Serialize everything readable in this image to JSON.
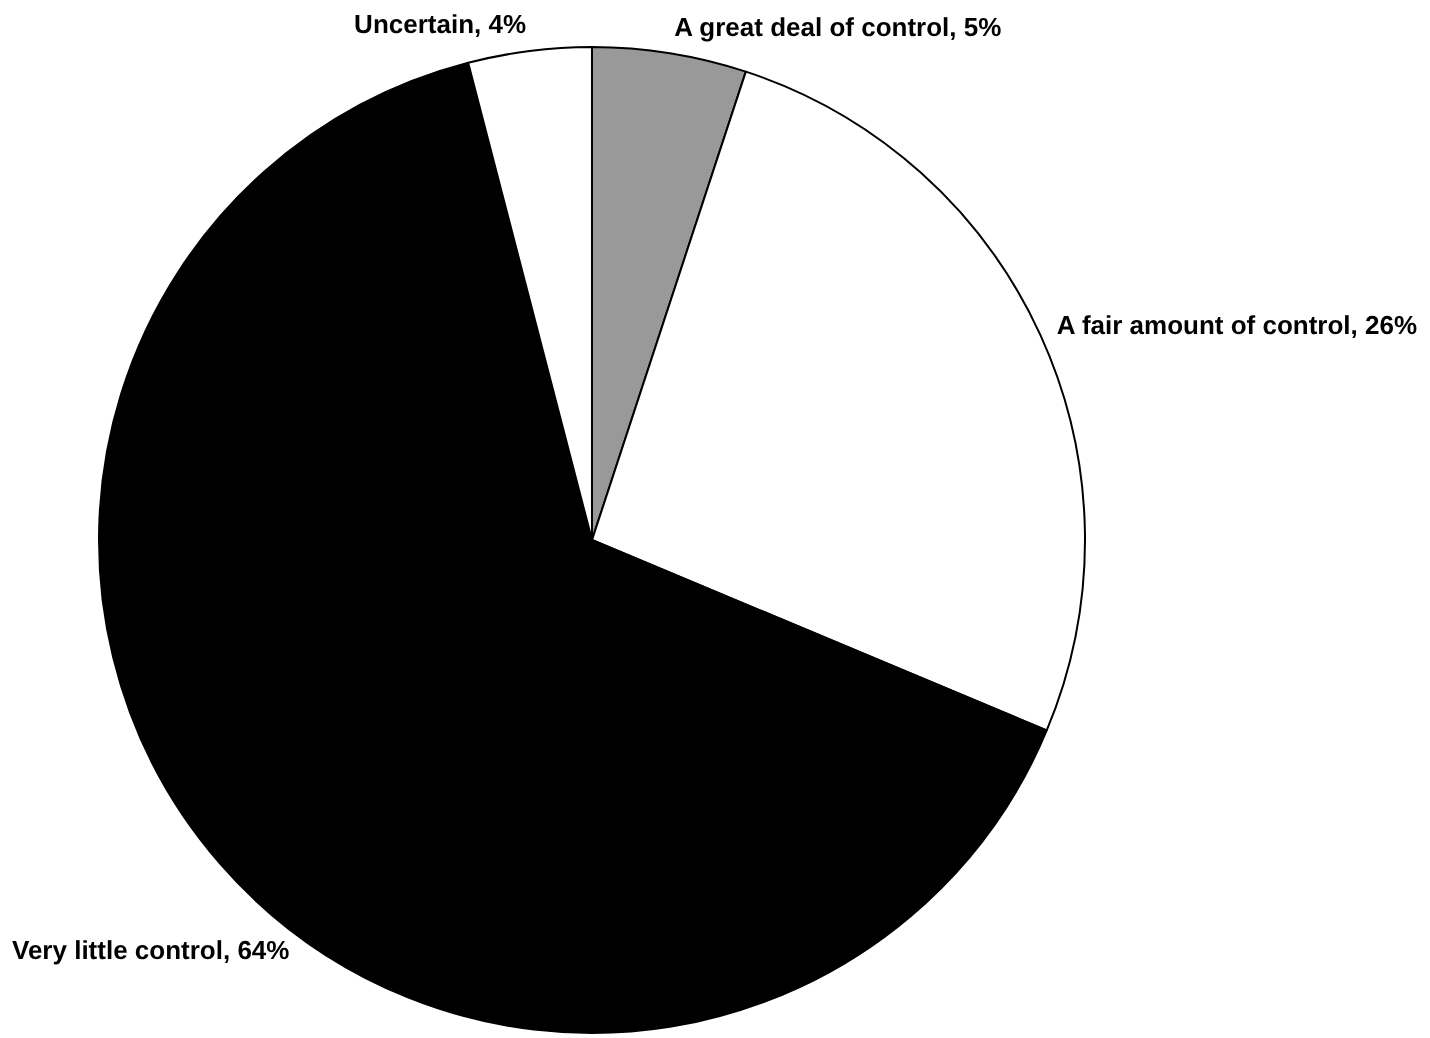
{
  "chart_data": {
    "type": "pie",
    "categories": [
      "A great deal of control",
      "A fair amount of control",
      "Very little control",
      "Uncertain"
    ],
    "values": [
      5,
      26,
      64,
      4
    ],
    "colors": [
      "#999999",
      "#ffffff",
      "#000000",
      "#ffffff"
    ],
    "value_labels": [
      "5%",
      "26%",
      "64%",
      "4%"
    ],
    "legend": false
  }
}
